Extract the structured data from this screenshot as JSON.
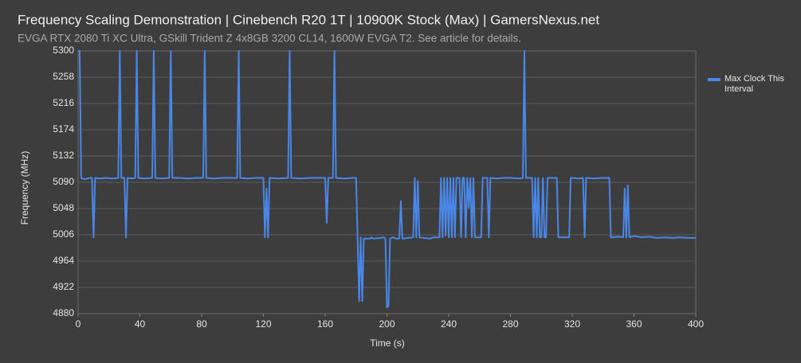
{
  "chart_data": {
    "type": "line",
    "title": "Frequency Scaling Demonstration | Cinebench R20 1T | 10900K Stock (Max) | GamersNexus.net",
    "subtitle": "EVGA RTX 2080 Ti XC Ultra, GSkill Trident Z 4x8GB 3200 CL14, 1600W EVGA T2. See article for details.",
    "x_label": "Time (s)",
    "y_label": "Frequency (MHz)",
    "xlim": [
      0,
      400
    ],
    "xticks": [
      0,
      40,
      80,
      120,
      160,
      200,
      240,
      280,
      320,
      360,
      400
    ],
    "ylim": [
      4880,
      5300
    ],
    "yticks": [
      4880,
      4922,
      4964,
      5006,
      5048,
      5090,
      5132,
      5174,
      5216,
      5258,
      5300
    ],
    "grid": true,
    "legend": "right",
    "x": [
      0,
      1,
      2,
      4,
      6,
      8,
      9,
      10,
      11,
      14,
      18,
      22,
      26,
      27,
      28,
      30,
      31,
      32,
      35,
      37,
      38,
      39,
      43,
      48,
      49,
      50,
      54,
      59,
      60,
      61,
      66,
      71,
      76,
      81,
      82,
      83,
      88,
      93,
      98,
      103,
      104,
      105,
      110,
      115,
      120,
      121,
      122,
      123,
      124,
      130,
      136,
      137,
      138,
      144,
      150,
      156,
      160,
      161,
      162,
      165,
      166,
      167,
      172,
      178,
      180,
      181,
      182,
      183,
      184,
      185,
      189,
      190,
      191,
      196,
      198,
      199,
      200,
      201,
      202,
      204,
      206,
      208,
      209,
      210,
      214,
      217,
      218,
      219,
      220,
      221,
      224,
      228,
      230,
      234,
      235,
      236,
      237,
      238,
      239,
      240,
      241,
      242,
      243,
      244,
      245,
      247,
      248,
      249,
      250,
      251,
      252,
      253,
      254,
      255,
      256,
      257,
      261,
      262,
      265,
      266,
      267,
      271,
      276,
      280,
      286,
      288,
      289,
      290,
      294,
      295,
      296,
      297,
      298,
      299,
      300,
      301,
      302,
      303,
      304,
      308,
      310,
      311,
      318,
      319,
      325,
      327,
      328,
      329,
      334,
      339,
      344,
      345,
      350,
      353,
      354,
      355,
      356,
      357,
      360,
      365,
      370,
      375,
      380,
      385,
      390,
      395,
      400
    ],
    "series": [
      {
        "name": "Max Clock This Interval",
        "color": "#4a86e8",
        "values": [
          5300,
          5300,
          5097,
          5095,
          5096,
          5097,
          5097,
          5002,
          5097,
          5096,
          5097,
          5096,
          5097,
          5300,
          5097,
          5097,
          5002,
          5097,
          5096,
          5097,
          5300,
          5097,
          5096,
          5097,
          5300,
          5097,
          5096,
          5097,
          5300,
          5097,
          5097,
          5096,
          5097,
          5097,
          5300,
          5097,
          5096,
          5097,
          5097,
          5097,
          5300,
          5097,
          5096,
          5097,
          5097,
          5002,
          5080,
          5002,
          5097,
          5096,
          5097,
          5300,
          5097,
          5096,
          5097,
          5097,
          5097,
          5025,
          5097,
          5097,
          5300,
          5097,
          5096,
          5097,
          5097,
          5000,
          4900,
          5002,
          4900,
          5000,
          5000,
          5002,
          5000,
          5001,
          5002,
          5000,
          4890,
          4892,
          5000,
          5002,
          5000,
          5000,
          5060,
          5000,
          5001,
          5002,
          5097,
          5002,
          5092,
          5002,
          5001,
          5000,
          5002,
          5002,
          5097,
          5002,
          5097,
          5005,
          5097,
          5002,
          5097,
          5002,
          5097,
          5002,
          5097,
          5097,
          5002,
          5097,
          5097,
          5002,
          5097,
          5050,
          5097,
          5002,
          5097,
          5002,
          5002,
          5097,
          5097,
          5002,
          5097,
          5096,
          5097,
          5097,
          5096,
          5097,
          5300,
          5097,
          5097,
          5002,
          5097,
          5002,
          5097,
          5002,
          5002,
          5097,
          5002,
          5002,
          5097,
          5097,
          5097,
          5002,
          5002,
          5097,
          5096,
          5097,
          5002,
          5097,
          5096,
          5097,
          5097,
          5002,
          5003,
          5002,
          5080,
          5002,
          5085,
          5002,
          5004,
          5002,
          5003,
          5001,
          5002,
          5001,
          5002,
          5001,
          5001
        ]
      }
    ]
  }
}
